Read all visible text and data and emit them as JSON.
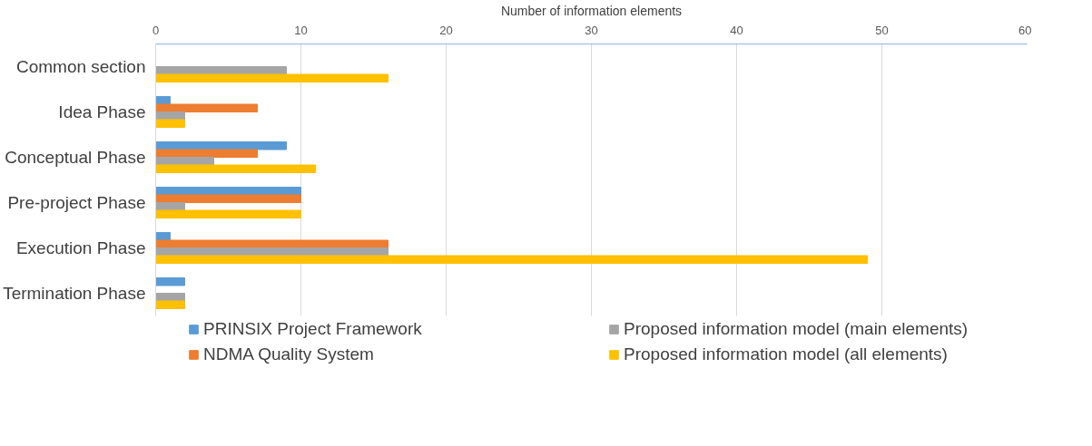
{
  "chart_data": {
    "type": "bar",
    "orientation": "horizontal",
    "xlabel": "Number of information elements",
    "categories": [
      "Common section",
      "Idea Phase",
      "Conceptual Phase",
      "Pre-project Phase",
      "Execution Phase",
      "Termination Phase"
    ],
    "series": [
      {
        "name": "PRINSIX Project Framework",
        "color": "#5b9bd5",
        "values": [
          0,
          1,
          9,
          10,
          1,
          2
        ]
      },
      {
        "name": "NDMA Quality System",
        "color": "#ed7d31",
        "values": [
          0,
          7,
          7,
          10,
          16,
          0
        ]
      },
      {
        "name": "Proposed information model (main elements)",
        "color": "#a5a5a5",
        "values": [
          9,
          2,
          4,
          2,
          16,
          2
        ]
      },
      {
        "name": "Proposed information model (all elements)",
        "color": "#ffc000",
        "values": [
          16,
          2,
          11,
          10,
          49,
          2
        ]
      }
    ],
    "xlim": [
      0,
      60
    ],
    "xticks": [
      0,
      10,
      20,
      30,
      40,
      50,
      60
    ],
    "grid": "x",
    "legend": "bottom"
  }
}
